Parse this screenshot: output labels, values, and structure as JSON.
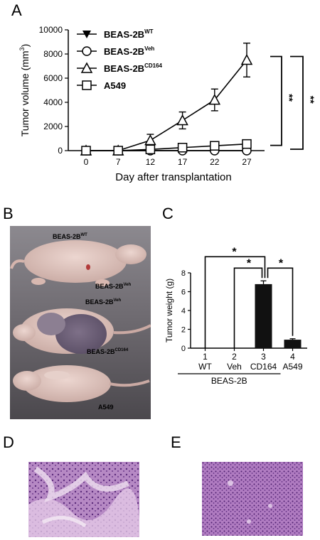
{
  "panels": {
    "a": "A",
    "b": "B",
    "c": "C",
    "d": "D",
    "e": "E"
  },
  "chart_data": [
    {
      "type": "line",
      "xlabel": "Day after transplantation",
      "ylabel": "Tumor volume (mm",
      "ylabel_sup": "3",
      "ylabel_close": ")",
      "x": [
        0,
        7,
        12,
        17,
        22,
        27
      ],
      "ylim": [
        0,
        10000
      ],
      "yticks": [
        0,
        2000,
        4000,
        6000,
        8000,
        10000
      ],
      "legend_position": "top-left",
      "significance": [
        "**",
        "**"
      ],
      "series": [
        {
          "name": "BEAS-2B",
          "name_sup": "WT",
          "marker": "triangle-down",
          "values": [
            0,
            0,
            0,
            0,
            0,
            0
          ]
        },
        {
          "name": "BEAS-2B",
          "name_sup": "Veh",
          "marker": "circle",
          "values": [
            0,
            0,
            0,
            0,
            0,
            0
          ]
        },
        {
          "name": "BEAS-2B",
          "name_sup": "CD164",
          "marker": "triangle-up",
          "values": [
            0,
            0,
            850,
            2500,
            4200,
            7500
          ],
          "errors": [
            0,
            0,
            500,
            700,
            900,
            1400
          ]
        },
        {
          "name": "A549",
          "name_sup": "",
          "marker": "square",
          "values": [
            0,
            0,
            100,
            250,
            400,
            550
          ],
          "errors": [
            0,
            0,
            50,
            80,
            100,
            150
          ]
        }
      ]
    },
    {
      "type": "bar",
      "ylabel": "Tumor weight (g)",
      "ylim": [
        0,
        8
      ],
      "yticks": [
        0,
        2,
        4,
        6,
        8
      ],
      "categories": [
        "1",
        "2",
        "3",
        "4"
      ],
      "category_names": [
        "WT",
        "Veh",
        "CD164",
        "A549"
      ],
      "group_label": "BEAS-2B",
      "values": [
        0,
        0,
        6.8,
        0.9
      ],
      "errors": [
        0,
        0,
        0.35,
        0.1
      ],
      "significance": [
        "*",
        "*",
        "*"
      ]
    }
  ],
  "photo_labels": {
    "wt": {
      "base": "BEAS-2B",
      "sup": "WT"
    },
    "veh1": {
      "base": "BEAS-2B",
      "sup": "Veh"
    },
    "veh2": {
      "base": "BEAS-2B",
      "sup": "Veh"
    },
    "cd164": {
      "base": "BEAS-2B",
      "sup": "CD164"
    },
    "a549": {
      "base": "A549",
      "sup": ""
    }
  },
  "colors": {
    "photo_bg": "#6e6a70",
    "mouse_skin": "#e0c7c0",
    "tissue_d": "#c7a2d2",
    "tissue_e": "#b27cc2"
  }
}
